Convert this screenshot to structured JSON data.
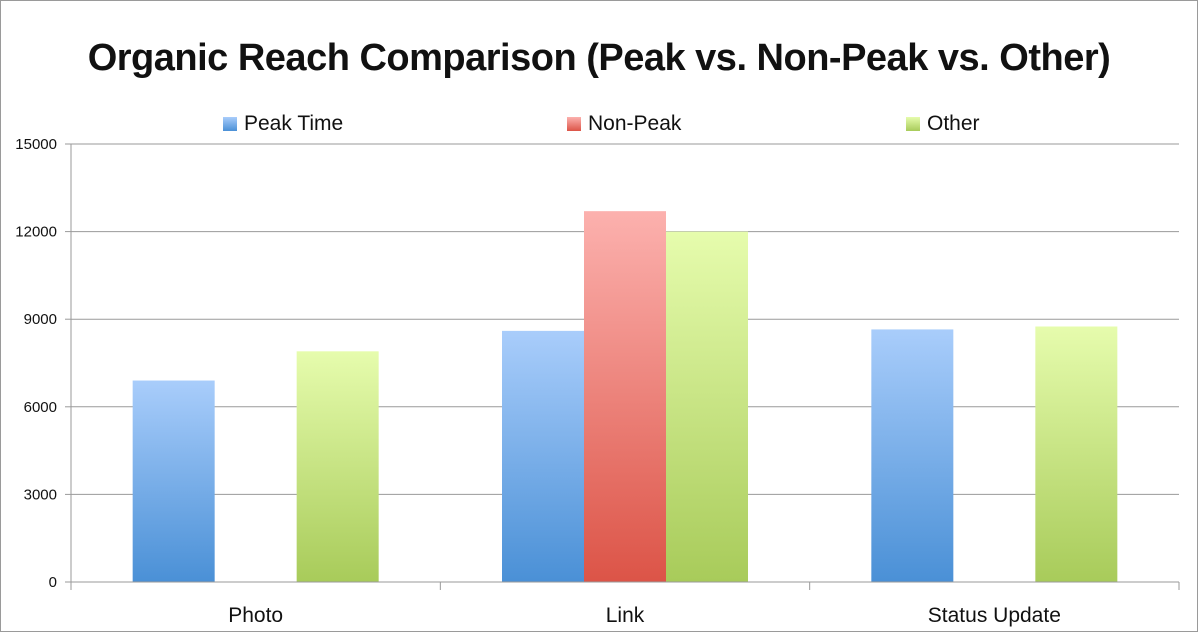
{
  "chart_data": {
    "type": "bar",
    "title": "Organic Reach Comparison (Peak vs. Non-Peak vs. Other)",
    "categories": [
      "Photo",
      "Link",
      "Status Update"
    ],
    "series": [
      {
        "name": "Peak Time",
        "values": [
          6900,
          8600,
          8650
        ],
        "color_top": "#a9cdfb",
        "color_bottom": "#4a90d6"
      },
      {
        "name": "Non-Peak",
        "values": [
          null,
          12700,
          null
        ],
        "color_top": "#fcb1ae",
        "color_bottom": "#dc5447"
      },
      {
        "name": "Other",
        "values": [
          7900,
          12000,
          8750
        ],
        "color_top": "#e6fcad",
        "color_bottom": "#a8cb5a"
      }
    ],
    "ylim": [
      0,
      15000
    ],
    "yticks": [
      "0",
      "3000",
      "6000",
      "9000",
      "12000",
      "15000"
    ],
    "grid": true,
    "legend_position": "top"
  }
}
